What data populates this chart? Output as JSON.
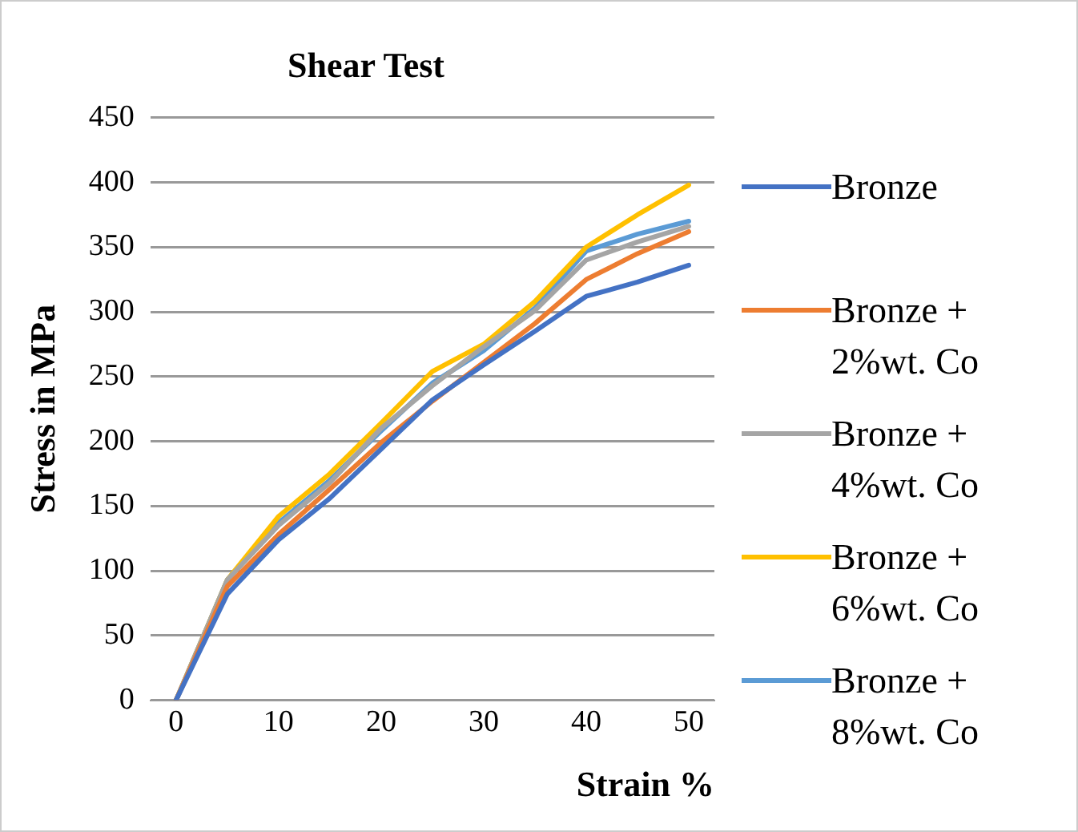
{
  "chart_data": {
    "type": "line",
    "title": "Shear Test",
    "xlabel": "Strain %",
    "ylabel": "Stress in MPa",
    "x": [
      0,
      5,
      10,
      15,
      20,
      25,
      30,
      35,
      40,
      45,
      50
    ],
    "xlim": [
      -2.5,
      52.5
    ],
    "xticks": [
      0,
      10,
      20,
      30,
      40,
      50
    ],
    "ylim": [
      0,
      450
    ],
    "yticks": [
      0,
      50,
      100,
      150,
      200,
      250,
      300,
      350,
      400,
      450
    ],
    "grid": "y",
    "legend": "right",
    "marker": "none",
    "line_style": "solid",
    "series": [
      {
        "name": "Bronze",
        "color": "#4472c4",
        "values": [
          0,
          82,
          124,
          156,
          194,
          232,
          259,
          285,
          312,
          323,
          336
        ]
      },
      {
        "name": "Bronze + 2%wt. Co",
        "color": "#ed7d31",
        "values": [
          0,
          88,
          128,
          163,
          199,
          231,
          261,
          291,
          325,
          345,
          362
        ]
      },
      {
        "name": "Bronze + 4%wt. Co",
        "color": "#a5a5a5",
        "values": [
          0,
          93,
          135,
          168,
          210,
          243,
          273,
          301,
          340,
          354,
          366
        ]
      },
      {
        "name": "Bronze + 6%wt. Co",
        "color": "#ffc000",
        "values": [
          0,
          93,
          142,
          175,
          214,
          254,
          275,
          308,
          350,
          375,
          398
        ]
      },
      {
        "name": "Bronze + 8%wt. Co",
        "color": "#5b9bd5",
        "values": [
          0,
          93,
          137,
          170,
          208,
          245,
          270,
          303,
          347,
          360,
          370
        ]
      }
    ]
  }
}
